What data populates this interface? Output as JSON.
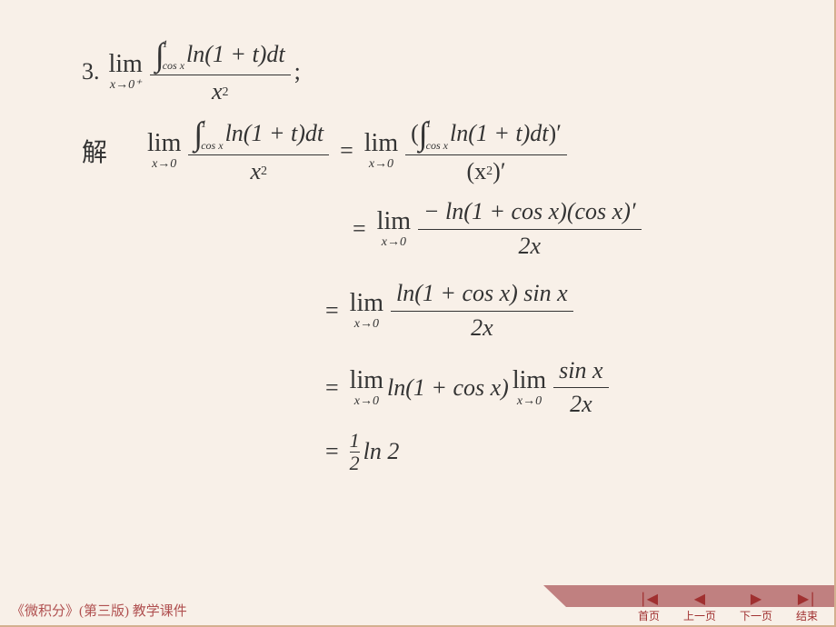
{
  "problem": {
    "number": "3.",
    "lim_sub": "x→0⁺",
    "int_upper": "1",
    "int_lower": "cos x",
    "integrand": "ln(1 + t)dt",
    "denom": "x",
    "denom_sup": "2",
    "tail": ";"
  },
  "solution_label": "解",
  "steps": {
    "s1_left": {
      "lim_sub": "x→0",
      "int_upper": "1",
      "int_lower": "cos x",
      "integrand": "ln(1 + t)dt",
      "denom": "x",
      "denom_sup": "2"
    },
    "s1_right": {
      "lim_sub": "x→0",
      "num_open": "(",
      "int_upper": "1",
      "int_lower": "cos x",
      "integrand": "ln(1 + t)dt",
      "num_close": ")′",
      "denom": "(x",
      "denom_mid_sup": "2",
      "denom_close": ")′"
    },
    "s2": {
      "lim_sub": "x→0",
      "num": "− ln(1 + cos x)(cos x)′",
      "den": "2x"
    },
    "s3": {
      "lim_sub": "x→0",
      "num": "ln(1 + cos x) sin x",
      "den": "2x"
    },
    "s4": {
      "lim1_sub": "x→0",
      "expr1": "ln(1 + cos x)",
      "lim2_sub": "x→0",
      "num2": "sin x",
      "den2": "2x"
    },
    "s5": {
      "half_num": "1",
      "half_den": "2",
      "rest": "ln 2"
    }
  },
  "footer": "《微积分》(第三版) 教学课件",
  "nav": {
    "first": "首页",
    "prev": "上一页",
    "next": "下一页",
    "end": "结束"
  },
  "colors": {
    "bg": "#f8f0e8",
    "text": "#333333",
    "accent": "#a03030",
    "ribbon": "#c08080",
    "border": "#d4b090"
  }
}
